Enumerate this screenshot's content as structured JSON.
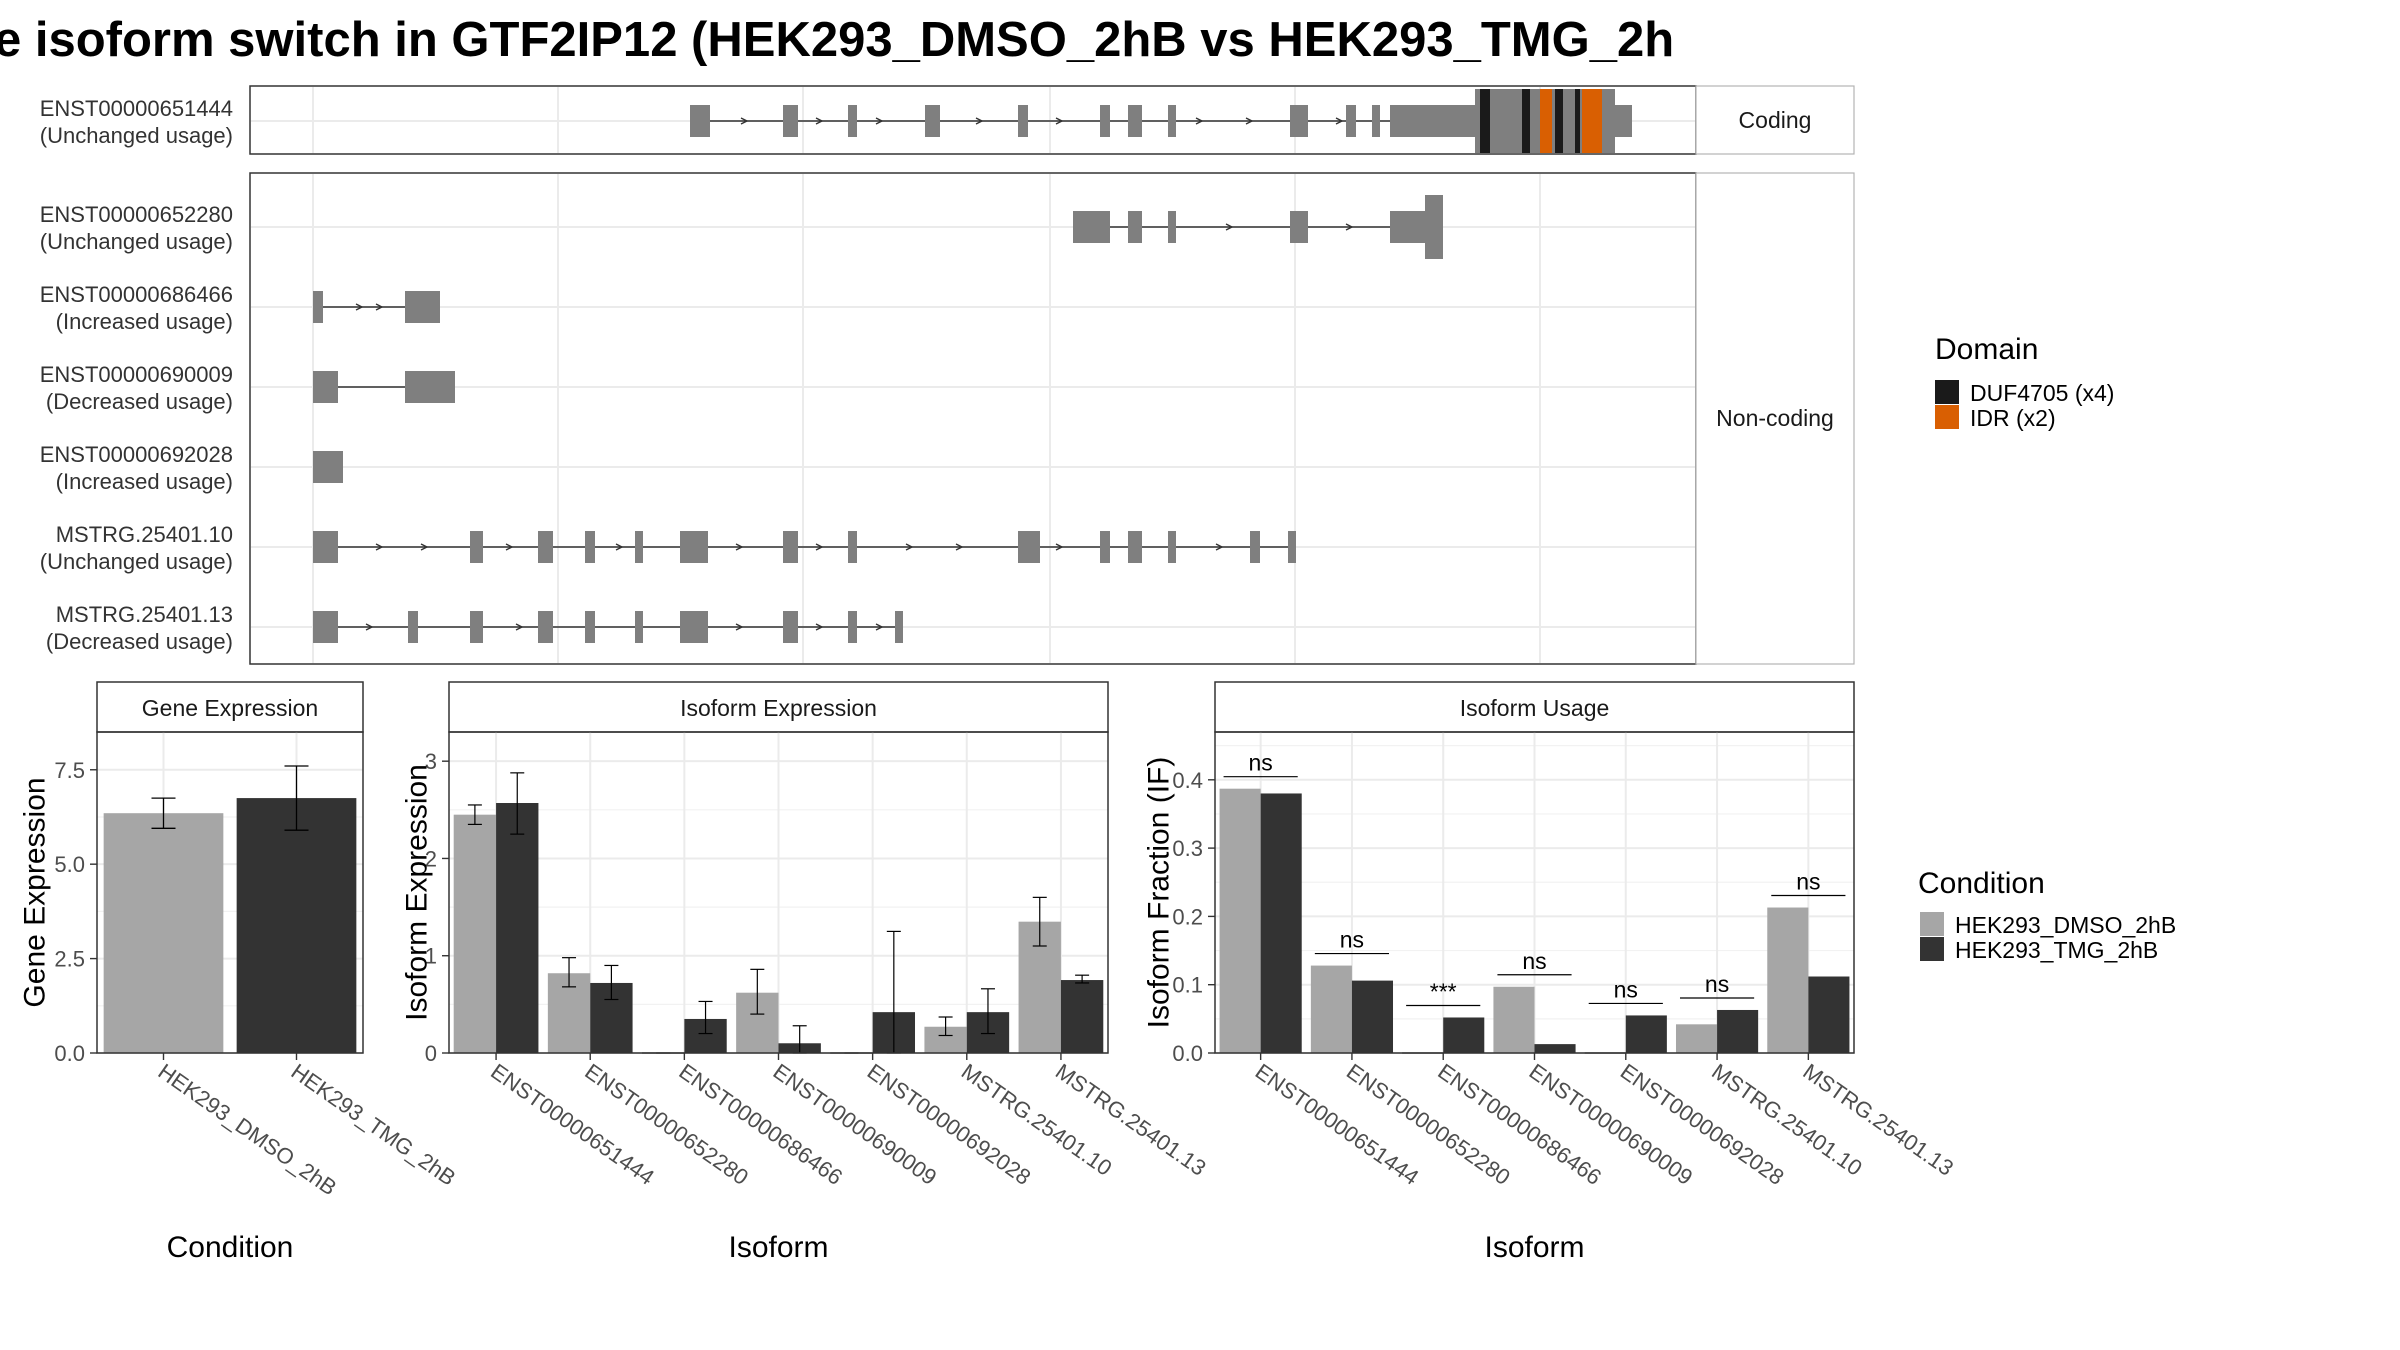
{
  "title": "e isoform switch in GTF2IP12 (HEK293_DMSO_2hB vs HEK293_TMG_2h",
  "colors": {
    "exon": "#7f7f7f",
    "domain_DUF4705": "#1a1a1a",
    "domain_IDR": "#d95f02",
    "cond_DMSO": "#a6a6a6",
    "cond_TMG": "#333333",
    "grid": "#ebebeb",
    "strip_bg": "#ffffff"
  },
  "structure": {
    "strips": [
      "Coding",
      "Non-coding"
    ],
    "transcripts": [
      {
        "id": "ENST00000651444",
        "usage": "(Unchanged usage)",
        "group": "Coding"
      },
      {
        "id": "ENST00000652280",
        "usage": "(Unchanged usage)",
        "group": "Non-coding"
      },
      {
        "id": "ENST00000686466",
        "usage": "(Increased usage)",
        "group": "Non-coding"
      },
      {
        "id": "ENST00000690009",
        "usage": "(Decreased usage)",
        "group": "Non-coding"
      },
      {
        "id": "ENST00000692028",
        "usage": "(Increased usage)",
        "group": "Non-coding"
      },
      {
        "id": "MSTRG.25401.10",
        "usage": "(Unchanged usage)",
        "group": "Non-coding"
      },
      {
        "id": "MSTRG.25401.13",
        "usage": "(Decreased usage)",
        "group": "Non-coding"
      }
    ]
  },
  "domain_legend": {
    "title": "Domain",
    "items": [
      {
        "label": "DUF4705 (x4)",
        "color": "#1a1a1a"
      },
      {
        "label": "IDR (x2)",
        "color": "#d95f02"
      }
    ]
  },
  "condition_legend": {
    "title": "Condition",
    "items": [
      {
        "label": "HEK293_DMSO_2hB",
        "color": "#a6a6a6"
      },
      {
        "label": "HEK293_TMG_2hB",
        "color": "#333333"
      }
    ]
  },
  "chart_data": [
    {
      "type": "bar",
      "title": "Gene Expression",
      "xlabel": "Condition",
      "ylabel": "Gene Expression",
      "ylim": [
        0,
        8.5
      ],
      "yticks": [
        "0.0",
        "2.5",
        "5.0",
        "7.5"
      ],
      "categories": [
        "HEK293_DMSO_2hB",
        "HEK293_TMG_2hB"
      ],
      "values": [
        6.35,
        6.75
      ],
      "error_low": [
        5.95,
        5.9
      ],
      "error_high": [
        6.75,
        7.6
      ]
    },
    {
      "type": "bar",
      "title": "Isoform Expression",
      "xlabel": "Isoform",
      "ylabel": "Isoform Expression",
      "ylim": [
        0,
        3.3
      ],
      "yticks": [
        "0",
        "1",
        "2",
        "3"
      ],
      "categories": [
        "ENST00000651444",
        "ENST00000652280",
        "ENST00000686466",
        "ENST00000690009",
        "ENST00000692028",
        "MSTRG.25401.10",
        "MSTRG.25401.13"
      ],
      "series": [
        {
          "name": "HEK293_DMSO_2hB",
          "values": [
            2.45,
            0.82,
            0.0,
            0.62,
            0.0,
            0.27,
            1.35
          ],
          "error_low": [
            2.35,
            0.68,
            0.0,
            0.4,
            0.0,
            0.18,
            1.1
          ],
          "error_high": [
            2.55,
            0.98,
            0.0,
            0.86,
            0.0,
            0.37,
            1.6
          ]
        },
        {
          "name": "HEK293_TMG_2hB",
          "values": [
            2.57,
            0.72,
            0.35,
            0.1,
            0.42,
            0.42,
            0.75
          ],
          "error_low": [
            2.25,
            0.55,
            0.2,
            0.0,
            0.0,
            0.2,
            0.72
          ],
          "error_high": [
            2.88,
            0.9,
            0.53,
            0.28,
            1.25,
            0.66,
            0.8
          ]
        }
      ]
    },
    {
      "type": "bar",
      "title": "Isoform Usage",
      "xlabel": "Isoform",
      "ylabel": "Isoform Fraction (IF)",
      "ylim": [
        0,
        0.47
      ],
      "yticks": [
        "0.0",
        "0.1",
        "0.2",
        "0.3",
        "0.4"
      ],
      "categories": [
        "ENST00000651444",
        "ENST00000652280",
        "ENST00000686466",
        "ENST00000690009",
        "ENST00000692028",
        "MSTRG.25401.10",
        "MSTRG.25401.13"
      ],
      "series": [
        {
          "name": "HEK293_DMSO_2hB",
          "values": [
            0.387,
            0.128,
            0.0,
            0.097,
            0.0,
            0.042,
            0.213
          ]
        },
        {
          "name": "HEK293_TMG_2hB",
          "values": [
            0.38,
            0.106,
            0.052,
            0.013,
            0.055,
            0.063,
            0.112
          ]
        }
      ],
      "significance": [
        "ns",
        "ns",
        "***",
        "ns",
        "ns",
        "ns",
        "ns"
      ]
    }
  ]
}
